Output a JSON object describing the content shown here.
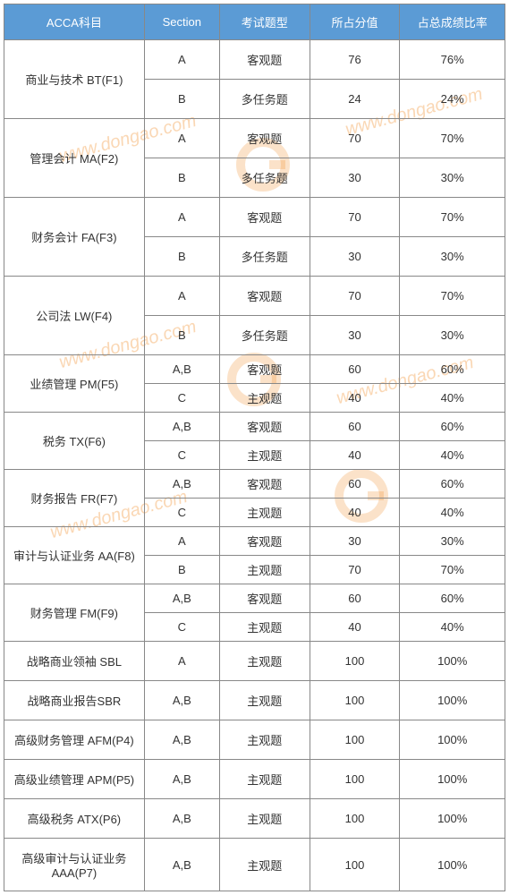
{
  "headers": [
    "ACCA科目",
    "Section",
    "考试题型",
    "所占分值",
    "占总成绩比率"
  ],
  "subjects": [
    {
      "name": "商业与技术 BT(F1)",
      "rows": [
        {
          "section": "A",
          "type": "客观题",
          "score": "76",
          "pct": "76%"
        },
        {
          "section": "B",
          "type": "多任务题",
          "score": "24",
          "pct": "24%"
        }
      ],
      "tall": true
    },
    {
      "name": "管理会计 MA(F2)",
      "rows": [
        {
          "section": "A",
          "type": "客观题",
          "score": "70",
          "pct": "70%"
        },
        {
          "section": "B",
          "type": "多任务题",
          "score": "30",
          "pct": "30%"
        }
      ],
      "tall": true
    },
    {
      "name": "财务会计 FA(F3)",
      "rows": [
        {
          "section": "A",
          "type": "客观题",
          "score": "70",
          "pct": "70%"
        },
        {
          "section": "B",
          "type": "多任务题",
          "score": "30",
          "pct": "30%"
        }
      ],
      "tall": true
    },
    {
      "name": "公司法 LW(F4)",
      "rows": [
        {
          "section": "A",
          "type": "客观题",
          "score": "70",
          "pct": "70%"
        },
        {
          "section": "B",
          "type": "多任务题",
          "score": "30",
          "pct": "30%"
        }
      ],
      "tall": true
    },
    {
      "name": "业绩管理 PM(F5)",
      "rows": [
        {
          "section": "A,B",
          "type": "客观题",
          "score": "60",
          "pct": "60%"
        },
        {
          "section": "C",
          "type": "主观题",
          "score": "40",
          "pct": "40%"
        }
      ]
    },
    {
      "name": "税务 TX(F6)",
      "rows": [
        {
          "section": "A,B",
          "type": "客观题",
          "score": "60",
          "pct": "60%"
        },
        {
          "section": "C",
          "type": "主观题",
          "score": "40",
          "pct": "40%"
        }
      ]
    },
    {
      "name": "财务报告 FR(F7)",
      "rows": [
        {
          "section": "A,B",
          "type": "客观题",
          "score": "60",
          "pct": "60%"
        },
        {
          "section": "C",
          "type": "主观题",
          "score": "40",
          "pct": "40%"
        }
      ]
    },
    {
      "name": "审计与认证业务 AA(F8)",
      "rows": [
        {
          "section": "A",
          "type": "客观题",
          "score": "30",
          "pct": "30%"
        },
        {
          "section": "B",
          "type": "主观题",
          "score": "70",
          "pct": "70%"
        }
      ]
    },
    {
      "name": "财务管理 FM(F9)",
      "rows": [
        {
          "section": "A,B",
          "type": "客观题",
          "score": "60",
          "pct": "60%"
        },
        {
          "section": "C",
          "type": "主观题",
          "score": "40",
          "pct": "40%"
        }
      ]
    },
    {
      "name": "战略商业领袖 SBL",
      "rows": [
        {
          "section": "A",
          "type": "主观题",
          "score": "100",
          "pct": "100%"
        }
      ]
    },
    {
      "name": "战略商业报告SBR",
      "rows": [
        {
          "section": "A,B",
          "type": "主观题",
          "score": "100",
          "pct": "100%"
        }
      ]
    },
    {
      "name": "高级财务管理 AFM(P4)",
      "rows": [
        {
          "section": "A,B",
          "type": "主观题",
          "score": "100",
          "pct": "100%"
        }
      ]
    },
    {
      "name": "高级业绩管理 APM(P5)",
      "rows": [
        {
          "section": "A,B",
          "type": "主观题",
          "score": "100",
          "pct": "100%"
        }
      ]
    },
    {
      "name": "高级税务 ATX(P6)",
      "rows": [
        {
          "section": "A,B",
          "type": "主观题",
          "score": "100",
          "pct": "100%"
        }
      ]
    },
    {
      "name": "高级审计与认证业务AAA(P7)",
      "rows": [
        {
          "section": "A,B",
          "type": "主观题",
          "score": "100",
          "pct": "100%"
        }
      ],
      "tall": true
    }
  ],
  "colwidths": [
    "28%",
    "15%",
    "18%",
    "18%",
    "21%"
  ],
  "colors": {
    "header_bg": "#5b9bd5",
    "header_text": "#ffffff",
    "border": "#888888",
    "watermark": "rgba(240,140,40,0.35)"
  },
  "watermark_text": "www.dongao.com"
}
